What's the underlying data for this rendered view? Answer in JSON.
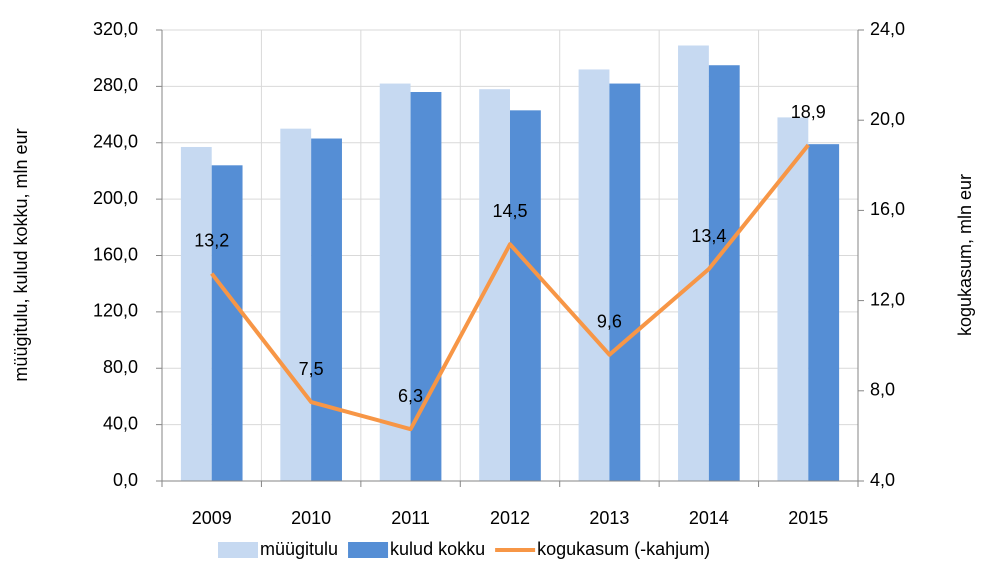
{
  "chart_data": {
    "type": "bar",
    "categories": [
      "2009",
      "2010",
      "2011",
      "2012",
      "2013",
      "2014",
      "2015"
    ],
    "series": [
      {
        "name": "müügitulu",
        "type": "bar",
        "color": "#c6d9f1",
        "values": [
          237,
          250,
          282,
          278,
          292,
          309,
          258
        ]
      },
      {
        "name": "kulud kokku",
        "type": "bar",
        "color": "#558ed5",
        "values": [
          224,
          243,
          276,
          263,
          282,
          295,
          239
        ]
      },
      {
        "name": "kogukasum (-kahjum)",
        "type": "line",
        "axis": "y2",
        "color": "#f79646",
        "values": [
          13.2,
          7.5,
          6.3,
          14.5,
          9.6,
          13.4,
          18.9
        ],
        "value_labels": [
          "13,2",
          "7,5",
          "6,3",
          "14,5",
          "9,6",
          "13,4",
          "18,9"
        ]
      }
    ],
    "ylabel": "müügitulu, kulud kokku, mln eur",
    "y2label": "kogukasum, mln eur",
    "ylim": [
      0,
      320
    ],
    "yticks": [
      {
        "value": 0,
        "label": "0,0"
      },
      {
        "value": 40,
        "label": "40,0"
      },
      {
        "value": 80,
        "label": "80,0"
      },
      {
        "value": 120,
        "label": "120,0"
      },
      {
        "value": 160,
        "label": "160,0"
      },
      {
        "value": 200,
        "label": "200,0"
      },
      {
        "value": 240,
        "label": "240,0"
      },
      {
        "value": 280,
        "label": "280,0"
      },
      {
        "value": 320,
        "label": "320,0"
      }
    ],
    "y2lim": [
      4,
      24
    ],
    "y2ticks": [
      {
        "value": 4,
        "label": "4,0"
      },
      {
        "value": 8,
        "label": "8,0"
      },
      {
        "value": 12,
        "label": "12,0"
      },
      {
        "value": 16,
        "label": "16,0"
      },
      {
        "value": 20,
        "label": "20,0"
      },
      {
        "value": 24,
        "label": "24,0"
      }
    ],
    "grid": true,
    "legend": "bottom"
  }
}
